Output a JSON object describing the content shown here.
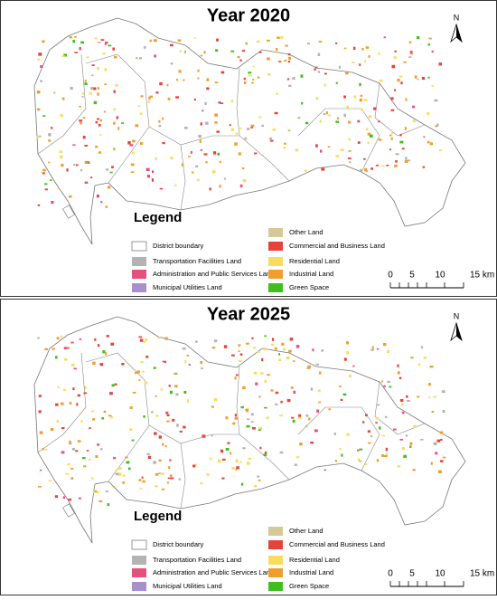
{
  "panels": [
    {
      "title": "Year 2020",
      "north": "N",
      "legend": {
        "title": "Legend",
        "items": [
          {
            "label": "District boundary",
            "color": "#ffffff"
          },
          {
            "label": "Transportation Facilities Land",
            "color": "#b3b3b3"
          },
          {
            "label": "Administration and Public Services Land",
            "color": "#e6507c"
          },
          {
            "label": "Municipal Utilities Land",
            "color": "#a890cf"
          },
          {
            "label": "Other Land",
            "color": "#d5c899"
          },
          {
            "label": "Commercial and Business Land",
            "color": "#e5423a"
          },
          {
            "label": "Residential Land",
            "color": "#f7dd5e"
          },
          {
            "label": "Industrial Land",
            "color": "#ef9e2e"
          },
          {
            "label": "Green Space",
            "color": "#3fbf1f"
          }
        ]
      },
      "scale": [
        "0",
        "5",
        "10",
        "15 km"
      ]
    },
    {
      "title": "Year 2025",
      "north": "N",
      "legend": {
        "title": "Legend",
        "items": [
          {
            "label": "District boundary",
            "color": "#ffffff"
          },
          {
            "label": "Transportation Facilities Land",
            "color": "#b3b3b3"
          },
          {
            "label": "Administration and Public Services Land",
            "color": "#e6507c"
          },
          {
            "label": "Municipal Utilities Land",
            "color": "#a890cf"
          },
          {
            "label": "Other Land",
            "color": "#d5c899"
          },
          {
            "label": "Commercial and Business Land",
            "color": "#e5423a"
          },
          {
            "label": "Residential Land",
            "color": "#f7dd5e"
          },
          {
            "label": "Industrial Land",
            "color": "#ef9e2e"
          },
          {
            "label": "Green Space",
            "color": "#3fbf1f"
          }
        ]
      },
      "scale": [
        "0",
        "5",
        "10",
        "15 km"
      ]
    }
  ]
}
